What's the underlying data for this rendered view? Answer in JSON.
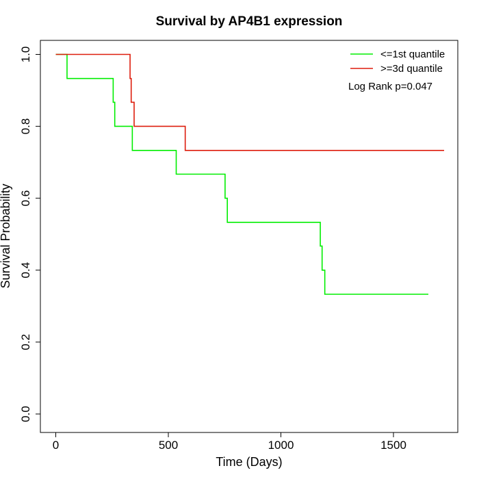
{
  "chart_data": {
    "type": "line",
    "step": true,
    "title": "Survival by AP4B1 expression",
    "xlabel": "Time (Days)",
    "ylabel": "Survival Probability",
    "xlim": [
      0,
      1800
    ],
    "ylim": [
      0,
      1.0
    ],
    "xticks": [
      0,
      500,
      1000,
      1500
    ],
    "yticks": [
      0.0,
      0.2,
      0.4,
      0.6,
      0.8,
      1.0
    ],
    "xtick_labels": [
      "0",
      "500",
      "1000",
      "1500"
    ],
    "ytick_labels": [
      "0.0",
      "0.2",
      "0.4",
      "0.6",
      "0.8",
      "1.0"
    ],
    "grid": false,
    "legend_position": "top-right",
    "annotation": "Log Rank p=0.047",
    "series": [
      {
        "name": "<=1st quantile",
        "color": "#00ee00",
        "x": [
          0,
          50,
          255,
          262,
          340,
          535,
          752,
          762,
          1175,
          1183,
          1195,
          1655
        ],
        "y": [
          1.0,
          0.933,
          0.867,
          0.8,
          0.733,
          0.667,
          0.6,
          0.533,
          0.467,
          0.4,
          0.333,
          0.333
        ]
      },
      {
        "name": ">=3d quantile",
        "color": "#dd1c0c",
        "x": [
          0,
          330,
          335,
          348,
          575,
          1725
        ],
        "y": [
          1.0,
          0.933,
          0.867,
          0.8,
          0.733,
          0.733
        ]
      }
    ]
  }
}
